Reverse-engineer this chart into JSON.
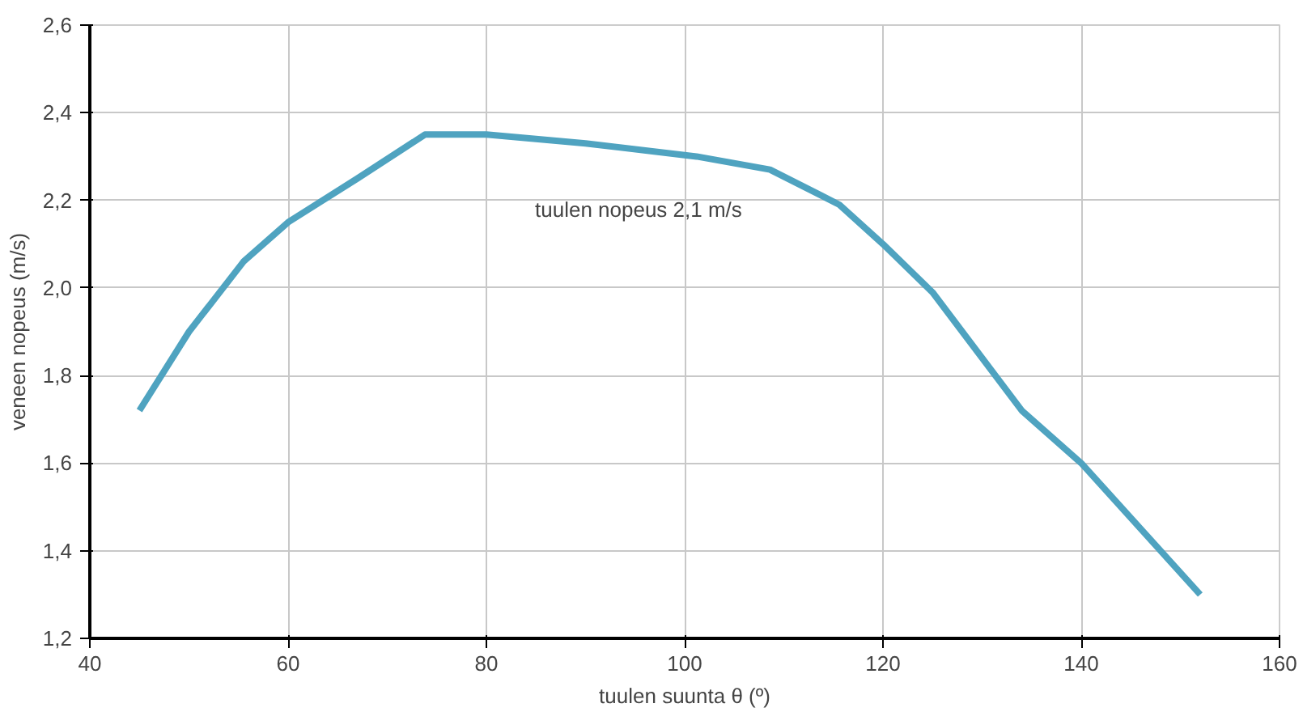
{
  "chart_data": {
    "type": "line",
    "xlabel": "tuulen suunta θ (º)",
    "ylabel": "veneen nopeus (m/s)",
    "annotations": [
      "tuulen nopeus 2,1 m/s"
    ],
    "x": [
      45,
      50,
      55.5,
      60,
      67,
      73.8,
      80,
      90,
      101.2,
      108.6,
      115.6,
      120,
      125,
      134,
      140,
      146,
      152
    ],
    "series": [
      {
        "color": "#4fa3c0",
        "values": [
          1.72,
          1.9,
          2.06,
          2.15,
          2.25,
          2.35,
          2.35,
          2.33,
          2.3,
          2.27,
          2.19,
          2.1,
          1.99,
          1.72,
          1.6,
          1.45,
          1.3
        ]
      }
    ],
    "xlim": [
      40,
      160
    ],
    "ylim": [
      1.2,
      2.6
    ],
    "xticks": [
      40,
      60,
      80,
      100,
      120,
      140,
      160
    ],
    "yticks": [
      {
        "value": 1.2,
        "label": "1,2"
      },
      {
        "value": 1.4,
        "label": "1,4"
      },
      {
        "value": 1.6,
        "label": "1,6"
      },
      {
        "value": 1.8,
        "label": "1,8"
      },
      {
        "value": 2.0,
        "label": "2,0"
      },
      {
        "value": 2.2,
        "label": "2,2"
      },
      {
        "value": 2.4,
        "label": "2,4"
      },
      {
        "value": 2.6,
        "label": "2,6"
      }
    ],
    "grid": true
  }
}
